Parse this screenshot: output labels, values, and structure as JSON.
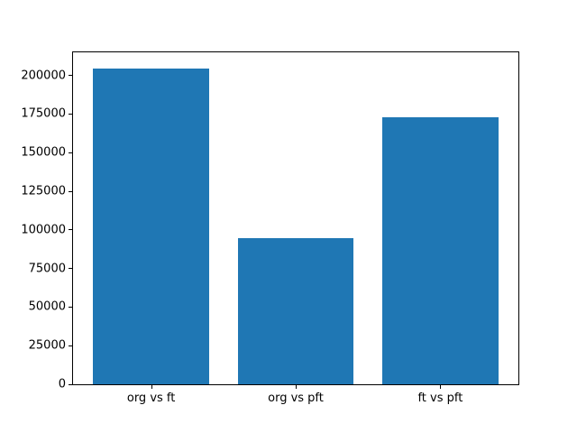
{
  "chart_data": {
    "type": "bar",
    "title": "",
    "xlabel": "",
    "ylabel": "",
    "categories": [
      "org vs ft",
      "org vs pft",
      "ft vs pft"
    ],
    "values": [
      204600,
      94600,
      173200
    ],
    "ylim": [
      0,
      215000
    ],
    "yticks": [
      0,
      25000,
      50000,
      75000,
      100000,
      125000,
      150000,
      175000,
      200000
    ],
    "bar_width_fraction": 0.8,
    "grid": false,
    "legend": "none",
    "bar_color": "#1f77b4"
  },
  "colors": {
    "bar": "#1f77b4",
    "frame": "#000000",
    "background": "#ffffff",
    "tick_text": "#000000"
  }
}
